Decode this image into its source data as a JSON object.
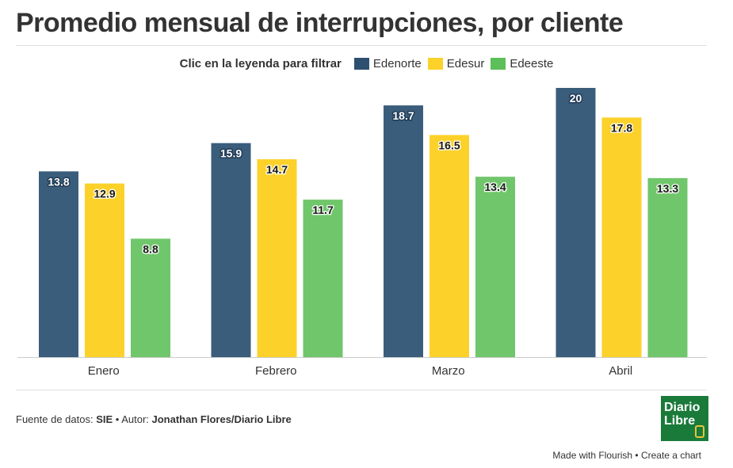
{
  "title": "Promedio mensual de interrupciones, por cliente",
  "legend": {
    "prompt": "Clic en la leyenda para filtrar",
    "items": [
      {
        "label": "Edenorte",
        "color": "#2e5070"
      },
      {
        "label": "Edesur",
        "color": "#fcd12a"
      },
      {
        "label": "Edeeste",
        "color": "#5cbf5a"
      }
    ]
  },
  "chart_data": {
    "type": "bar",
    "categories": [
      "Enero",
      "Febrero",
      "Marzo",
      "Abril"
    ],
    "series": [
      {
        "name": "Edenorte",
        "values": [
          13.8,
          15.9,
          18.7,
          20
        ],
        "color": "#3b5d7c"
      },
      {
        "name": "Edesur",
        "values": [
          12.9,
          14.7,
          16.5,
          17.8
        ],
        "color": "#fcd12a"
      },
      {
        "name": "Edeeste",
        "values": [
          8.8,
          11.7,
          13.4,
          13.3
        ],
        "color": "#70c66a"
      }
    ],
    "ylim": [
      0,
      20
    ],
    "grid": false
  },
  "footer": {
    "source_label": "Fuente de datos: ",
    "source": "SIE",
    "separator": " • Autor: ",
    "author": "Jonathan Flores/Diario Libre"
  },
  "logo": {
    "line1": "Diario",
    "line2": "Libre"
  },
  "credit": {
    "made_with": "Made with Flourish",
    "dot": " • ",
    "create": "Create a chart"
  }
}
